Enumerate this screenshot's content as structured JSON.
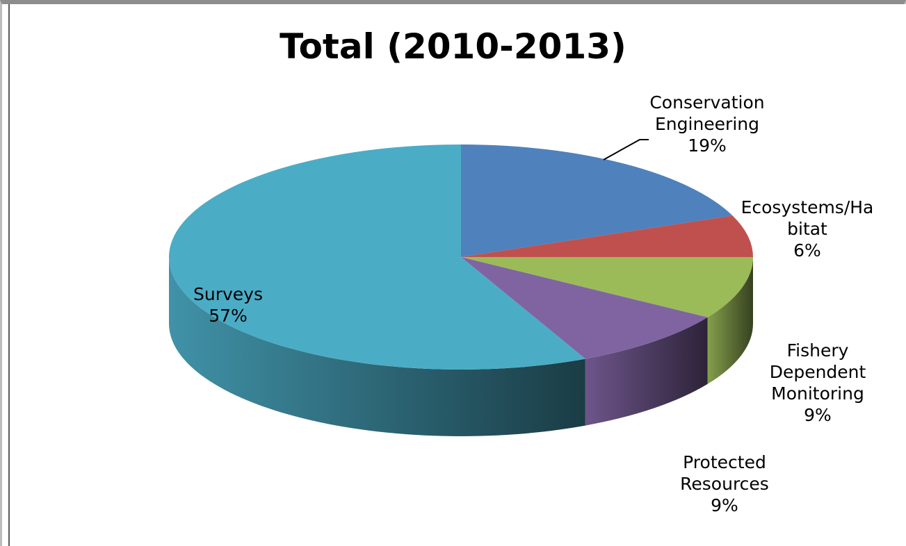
{
  "chart_data": {
    "type": "pie",
    "style": "3d",
    "title": "Total (2010-2013)",
    "slices": [
      {
        "label_lines": [
          "Conservation",
          "Engineering"
        ],
        "percent_label": "19%",
        "value": 19,
        "color": "#4f81bd"
      },
      {
        "label_lines": [
          "Ecosystems/Ha",
          "bitat"
        ],
        "percent_label": "6%",
        "value": 6,
        "color": "#c0504d"
      },
      {
        "label_lines": [
          "Fishery",
          "Dependent",
          "Monitoring"
        ],
        "percent_label": "9%",
        "value": 9,
        "color": "#9bbb59"
      },
      {
        "label_lines": [
          "Protected",
          "Resources"
        ],
        "percent_label": "9%",
        "value": 9,
        "color": "#8064a2"
      },
      {
        "label_lines": [
          "Surveys"
        ],
        "percent_label": "57%",
        "value": 57,
        "color": "#4bacc6"
      }
    ],
    "legend": "none",
    "grid": false
  }
}
